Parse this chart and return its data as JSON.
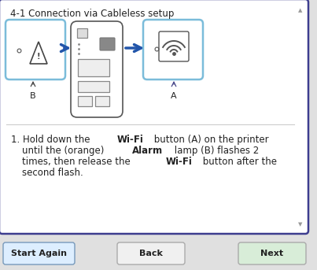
{
  "title": "4-1 Connection via Cableless setup",
  "outer_bg": "#e0e0e0",
  "main_box_bg": "#ffffff",
  "main_box_border": "#3d3d8f",
  "divider_color": "#cccccc",
  "btn_start_color": "#ddeeff",
  "btn_start_border": "#7799bb",
  "btn_back_color": "#f0f0f0",
  "btn_back_border": "#aaaaaa",
  "btn_next_color": "#d8edd8",
  "btn_next_border": "#aaaaaa",
  "btn_start_text": "Start Again",
  "btn_back_text": "Back",
  "btn_next_text": "Next",
  "wifi_box_color": "#7bbcda",
  "alarm_box_color": "#7bbcda",
  "printer_border": "#555555",
  "arrow_color": "#2255aa",
  "text_color": "#222222",
  "scroll_color": "#bbbbbb"
}
